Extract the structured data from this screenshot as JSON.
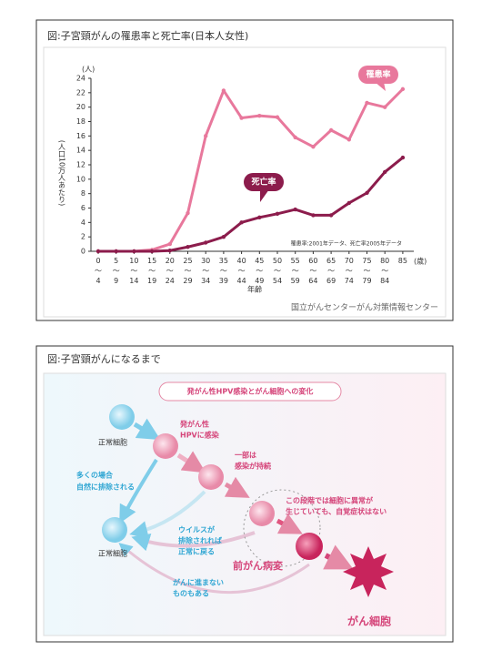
{
  "chart_data": {
    "type": "line",
    "title": "図:子宮頸がんの罹患率と死亡率(日本人女性)",
    "y_unit": "(人)",
    "y_label": "(人口10万人あたり)",
    "x_label": "年齢",
    "x_unit": "(歳)",
    "note": "罹患率:2001年データ、死亡率2005年データ",
    "source": "国立がんセンターがん対策情報センター",
    "categories": [
      "0〜4",
      "5〜9",
      "10〜14",
      "15〜19",
      "20〜24",
      "25〜29",
      "30〜34",
      "35〜39",
      "40〜44",
      "45〜49",
      "50〜54",
      "55〜59",
      "60〜64",
      "65〜69",
      "70〜74",
      "75〜79",
      "80〜84",
      "85"
    ],
    "series": [
      {
        "name": "罹患率",
        "color": "#e8789c",
        "values": [
          0,
          0,
          0,
          0.2,
          1.0,
          5.3,
          16,
          22.3,
          18.5,
          18.8,
          18.6,
          15.8,
          14.5,
          16.8,
          15.5,
          20.6,
          20,
          22.5
        ]
      },
      {
        "name": "死亡率",
        "color": "#8c1c4c",
        "values": [
          0,
          0,
          0,
          0,
          0.1,
          0.6,
          1.2,
          2.0,
          4.0,
          4.7,
          5.2,
          5.8,
          5.0,
          5.0,
          6.7,
          8.1,
          11,
          13
        ]
      }
    ],
    "ylim": [
      0,
      24
    ],
    "yticks": [
      0,
      2,
      4,
      6,
      8,
      10,
      12,
      14,
      16,
      18,
      20,
      22,
      24
    ]
  },
  "diagram": {
    "title": "図:子宮頸がんになるまで",
    "header": "発がん性HPV感染とがん細胞への変化",
    "labels": {
      "normal_top": "正常細胞",
      "infected": [
        "発がん性",
        "HPVに感染"
      ],
      "persist": [
        "一部は",
        "感染が持続"
      ],
      "cleared": [
        "多くの場合",
        "自然に排除される"
      ],
      "normal_bottom": "正常細胞",
      "recover": [
        "ウイルスが",
        "排除されれば",
        "正常に戻る"
      ],
      "stage_note": [
        "この段階では細胞に異常が",
        "生じていても、自覚症状はない"
      ],
      "precancer": "前がん病変",
      "no_progress": [
        "がんに進まない",
        "ものもある"
      ],
      "cancer": "がん細胞"
    }
  }
}
